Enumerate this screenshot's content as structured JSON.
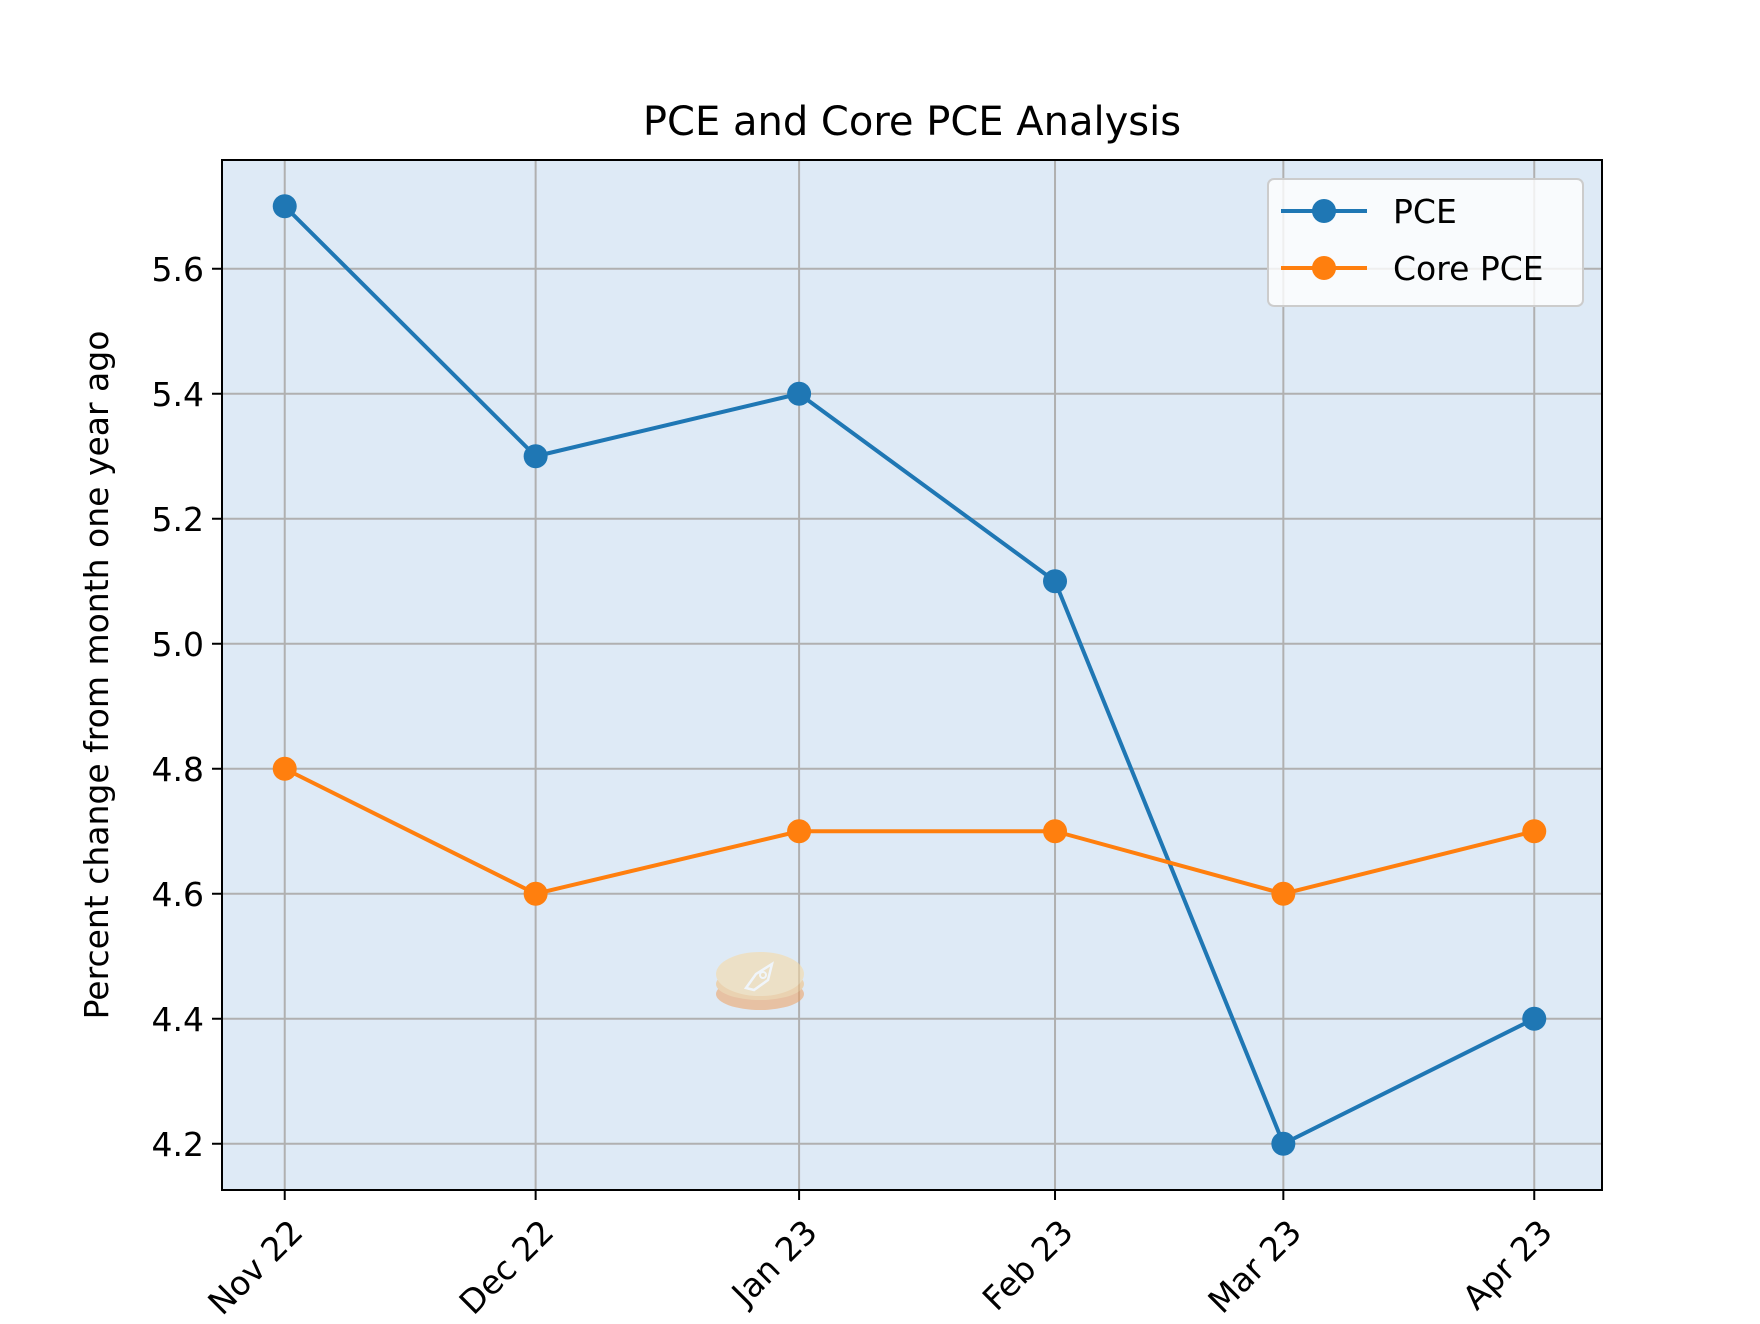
{
  "chart_data": {
    "type": "line",
    "title": "PCE and Core PCE Analysis",
    "xlabel": "",
    "ylabel": "Percent change from month one year ago",
    "categories": [
      "Nov 22",
      "Dec 22",
      "Jan 23",
      "Feb 23",
      "Mar 23",
      "Apr 23"
    ],
    "x": [
      0,
      1,
      2.05,
      3.07,
      3.98,
      4.98
    ],
    "ylim": [
      4.126,
      5.774
    ],
    "xlim": [
      -0.25,
      5.25
    ],
    "yticks": [
      4.2,
      4.4,
      4.6,
      4.8,
      5.0,
      5.2,
      5.4,
      5.6
    ],
    "ytick_labels": [
      "4.2",
      "4.4",
      "4.6",
      "4.8",
      "5.0",
      "5.2",
      "5.4",
      "5.6"
    ],
    "grid": true,
    "legend_position": "top-right",
    "background_color": "#deeaf6",
    "series": [
      {
        "name": "PCE",
        "color": "#1f77b4",
        "marker": "circle",
        "values": [
          5.7,
          5.3,
          5.4,
          5.1,
          4.2,
          4.4
        ]
      },
      {
        "name": "Core PCE",
        "color": "#ff7f0e",
        "marker": "circle",
        "values": [
          4.8,
          4.6,
          4.7,
          4.7,
          4.6,
          4.7
        ]
      }
    ]
  },
  "watermark_icon": "rocket-coin-icon"
}
